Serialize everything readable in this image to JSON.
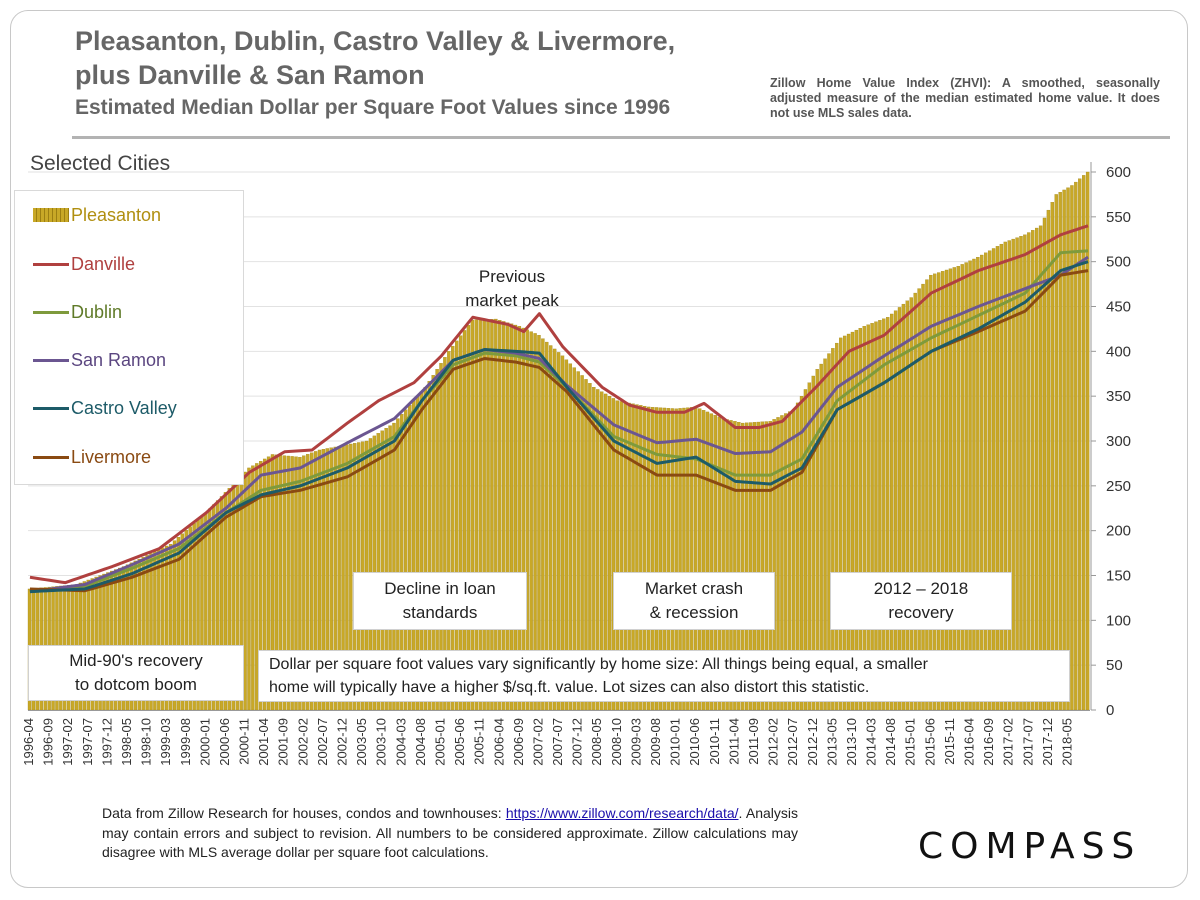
{
  "header": {
    "title_line1": "Pleasanton, Dublin, Castro Valley & Livermore,",
    "title_line2": "plus Danville &  San Ramon",
    "subtitle": "Estimated Median Dollar per Square Foot Values since 1996",
    "zhvi_note": "Zillow Home Value Index (ZHVI): A smoothed, seasonally adjusted measure of the median estimated home value. It does not use MLS sales data."
  },
  "section_label": "Selected Cities",
  "annotations": {
    "peak": [
      "Previous",
      "market peak"
    ],
    "mid90s": [
      "Mid-90's recovery",
      "to dotcom boom"
    ],
    "decline": [
      "Decline in loan",
      "standards"
    ],
    "crash": [
      "Market crash",
      "& recession"
    ],
    "recovery": [
      "2012 – 2018",
      "recovery"
    ],
    "size_note": [
      "Dollar per square foot values vary significantly by home size: All things being equal, a smaller",
      "home will typically have a higher $/sq.ft. value. Lot sizes can also distort this statistic."
    ]
  },
  "footer": {
    "source_line1": "Data from Zillow Research for houses, condos and townhouses:",
    "source_link": "https://www.zillow.com/research/data/",
    "source_rest": ". Analysis may contain errors and subject to revision. All numbers to be considered approximate. Zillow calculations may disagree with MLS average dollar per square foot calculations.",
    "logo": "COMPASS"
  },
  "colors": {
    "bar": "#c8a827",
    "bar_edge": "#9c7f12",
    "danville": "#b0403f",
    "dublin": "#7e9a3c",
    "san_ramon": "#6b5691",
    "castro_valley": "#1d5b68",
    "livermore": "#8a4a12",
    "legend_text_pleasanton": "#b08f10"
  },
  "chart_data": {
    "type": "bar+line",
    "x_start": "1996-04",
    "x_end": "2018-10",
    "x_step_months": 1,
    "ylim": [
      0,
      600
    ],
    "yticks": [
      0,
      50,
      100,
      150,
      200,
      250,
      300,
      350,
      400,
      450,
      500,
      550,
      600
    ],
    "xtick_labels": [
      "1996-04",
      "1996-09",
      "1997-02",
      "1997-07",
      "1997-12",
      "1998-05",
      "1998-10",
      "1999-03",
      "1999-08",
      "2000-01",
      "2000-06",
      "2000-11",
      "2001-04",
      "2001-09",
      "2002-02",
      "2002-07",
      "2002-12",
      "2003-05",
      "2003-10",
      "2004-03",
      "2004-08",
      "2005-01",
      "2005-06",
      "2005-11",
      "2006-04",
      "2006-09",
      "2007-02",
      "2007-07",
      "2007-12",
      "2008-05",
      "2008-10",
      "2009-03",
      "2009-08",
      "2010-01",
      "2010-06",
      "2010-11",
      "2011-04",
      "2011-09",
      "2012-02",
      "2012-07",
      "2012-12",
      "2013-05",
      "2013-10",
      "2014-03",
      "2014-08",
      "2015-01",
      "2015-06",
      "2015-11",
      "2016-04",
      "2016-09",
      "2017-02",
      "2017-07",
      "2017-12",
      "2018-05"
    ],
    "bar_series": {
      "name": "Pleasanton",
      "keypoints": [
        [
          "1996-04",
          135
        ],
        [
          "1997-04",
          140
        ],
        [
          "1998-04",
          160
        ],
        [
          "1999-04",
          185
        ],
        [
          "2000-01",
          220
        ],
        [
          "2000-12",
          270
        ],
        [
          "2001-06",
          285
        ],
        [
          "2002-01",
          282
        ],
        [
          "2002-06",
          290
        ],
        [
          "2003-06",
          300
        ],
        [
          "2004-01",
          320
        ],
        [
          "2004-09",
          360
        ],
        [
          "2005-03",
          400
        ],
        [
          "2005-09",
          435
        ],
        [
          "2006-03",
          436
        ],
        [
          "2006-09",
          428
        ],
        [
          "2007-02",
          418
        ],
        [
          "2007-08",
          395
        ],
        [
          "2008-04",
          360
        ],
        [
          "2008-10",
          345
        ],
        [
          "2009-06",
          338
        ],
        [
          "2010-01",
          336
        ],
        [
          "2010-06",
          338
        ],
        [
          "2011-01",
          325
        ],
        [
          "2011-06",
          320
        ],
        [
          "2012-01",
          322
        ],
        [
          "2012-07",
          335
        ],
        [
          "2013-01",
          380
        ],
        [
          "2013-07",
          415
        ],
        [
          "2014-01",
          428
        ],
        [
          "2014-07",
          438
        ],
        [
          "2015-01",
          460
        ],
        [
          "2015-06",
          485
        ],
        [
          "2016-01",
          495
        ],
        [
          "2016-06",
          505
        ],
        [
          "2017-01",
          522
        ],
        [
          "2017-06",
          530
        ],
        [
          "2017-10",
          540
        ],
        [
          "2018-02",
          575
        ],
        [
          "2018-06",
          585
        ],
        [
          "2018-10",
          600
        ]
      ]
    },
    "series": [
      {
        "name": "Danville",
        "keypoints": [
          [
            "1996-04",
            148
          ],
          [
            "1997-01",
            142
          ],
          [
            "1998-01",
            160
          ],
          [
            "1999-01",
            180
          ],
          [
            "2000-01",
            220
          ],
          [
            "2000-12",
            265
          ],
          [
            "2001-09",
            288
          ],
          [
            "2002-04",
            290
          ],
          [
            "2003-01",
            320
          ],
          [
            "2003-09",
            345
          ],
          [
            "2004-06",
            365
          ],
          [
            "2005-01",
            395
          ],
          [
            "2005-09",
            438
          ],
          [
            "2006-06",
            430
          ],
          [
            "2006-10",
            422
          ],
          [
            "2007-02",
            442
          ],
          [
            "2007-08",
            405
          ],
          [
            "2008-06",
            360
          ],
          [
            "2009-01",
            340
          ],
          [
            "2009-08",
            332
          ],
          [
            "2010-03",
            332
          ],
          [
            "2010-08",
            342
          ],
          [
            "2011-04",
            315
          ],
          [
            "2011-10",
            315
          ],
          [
            "2012-04",
            322
          ],
          [
            "2013-01",
            362
          ],
          [
            "2013-09",
            400
          ],
          [
            "2014-06",
            418
          ],
          [
            "2015-06",
            465
          ],
          [
            "2016-06",
            490
          ],
          [
            "2017-06",
            508
          ],
          [
            "2018-03",
            530
          ],
          [
            "2018-10",
            540
          ]
        ]
      },
      {
        "name": "Dublin",
        "keypoints": [
          [
            "1996-04",
            132
          ],
          [
            "1997-06",
            138
          ],
          [
            "1998-06",
            158
          ],
          [
            "1999-06",
            180
          ],
          [
            "2000-06",
            220
          ],
          [
            "2001-03",
            245
          ],
          [
            "2002-01",
            255
          ],
          [
            "2003-01",
            275
          ],
          [
            "2004-01",
            305
          ],
          [
            "2004-08",
            345
          ],
          [
            "2005-04",
            385
          ],
          [
            "2005-12",
            398
          ],
          [
            "2006-08",
            395
          ],
          [
            "2007-02",
            388
          ],
          [
            "2007-09",
            360
          ],
          [
            "2008-09",
            305
          ],
          [
            "2009-08",
            285
          ],
          [
            "2010-06",
            280
          ],
          [
            "2011-04",
            262
          ],
          [
            "2012-01",
            262
          ],
          [
            "2012-09",
            280
          ],
          [
            "2013-06",
            345
          ],
          [
            "2014-06",
            385
          ],
          [
            "2015-06",
            415
          ],
          [
            "2016-06",
            440
          ],
          [
            "2017-06",
            465
          ],
          [
            "2018-03",
            510
          ],
          [
            "2018-10",
            512
          ]
        ]
      },
      {
        "name": "San Ramon",
        "keypoints": [
          [
            "1996-04",
            132
          ],
          [
            "1997-06",
            140
          ],
          [
            "1998-06",
            162
          ],
          [
            "1999-06",
            185
          ],
          [
            "2000-06",
            225
          ],
          [
            "2001-03",
            262
          ],
          [
            "2002-01",
            270
          ],
          [
            "2003-01",
            298
          ],
          [
            "2004-01",
            325
          ],
          [
            "2004-08",
            355
          ],
          [
            "2005-04",
            390
          ],
          [
            "2005-12",
            402
          ],
          [
            "2006-08",
            398
          ],
          [
            "2007-02",
            392
          ],
          [
            "2007-09",
            362
          ],
          [
            "2008-09",
            318
          ],
          [
            "2009-08",
            298
          ],
          [
            "2010-06",
            302
          ],
          [
            "2011-04",
            286
          ],
          [
            "2012-01",
            288
          ],
          [
            "2012-09",
            310
          ],
          [
            "2013-06",
            360
          ],
          [
            "2014-06",
            395
          ],
          [
            "2015-06",
            428
          ],
          [
            "2016-06",
            450
          ],
          [
            "2017-06",
            470
          ],
          [
            "2018-03",
            485
          ],
          [
            "2018-10",
            505
          ]
        ]
      },
      {
        "name": "Castro Valley",
        "keypoints": [
          [
            "1996-04",
            132
          ],
          [
            "1997-06",
            135
          ],
          [
            "1998-06",
            152
          ],
          [
            "1999-06",
            175
          ],
          [
            "2000-06",
            220
          ],
          [
            "2001-03",
            240
          ],
          [
            "2002-01",
            250
          ],
          [
            "2003-01",
            270
          ],
          [
            "2004-01",
            300
          ],
          [
            "2004-08",
            345
          ],
          [
            "2005-04",
            390
          ],
          [
            "2005-12",
            402
          ],
          [
            "2006-08",
            400
          ],
          [
            "2007-02",
            398
          ],
          [
            "2007-09",
            360
          ],
          [
            "2008-09",
            300
          ],
          [
            "2009-08",
            275
          ],
          [
            "2010-06",
            282
          ],
          [
            "2011-04",
            255
          ],
          [
            "2012-01",
            252
          ],
          [
            "2012-09",
            270
          ],
          [
            "2013-06",
            335
          ],
          [
            "2014-06",
            365
          ],
          [
            "2015-06",
            400
          ],
          [
            "2016-06",
            425
          ],
          [
            "2017-06",
            455
          ],
          [
            "2018-03",
            490
          ],
          [
            "2018-10",
            500
          ]
        ]
      },
      {
        "name": "Livermore",
        "keypoints": [
          [
            "1996-04",
            135
          ],
          [
            "1997-06",
            133
          ],
          [
            "1998-06",
            148
          ],
          [
            "1999-06",
            168
          ],
          [
            "2000-06",
            215
          ],
          [
            "2001-03",
            238
          ],
          [
            "2002-01",
            245
          ],
          [
            "2003-01",
            260
          ],
          [
            "2004-01",
            290
          ],
          [
            "2004-08",
            335
          ],
          [
            "2005-04",
            380
          ],
          [
            "2005-12",
            392
          ],
          [
            "2006-08",
            388
          ],
          [
            "2007-02",
            382
          ],
          [
            "2007-09",
            355
          ],
          [
            "2008-09",
            290
          ],
          [
            "2009-08",
            262
          ],
          [
            "2010-06",
            262
          ],
          [
            "2011-04",
            245
          ],
          [
            "2012-01",
            245
          ],
          [
            "2012-09",
            265
          ],
          [
            "2013-06",
            335
          ],
          [
            "2014-06",
            365
          ],
          [
            "2015-06",
            400
          ],
          [
            "2016-06",
            422
          ],
          [
            "2017-06",
            445
          ],
          [
            "2018-03",
            485
          ],
          [
            "2018-10",
            490
          ]
        ]
      }
    ]
  }
}
